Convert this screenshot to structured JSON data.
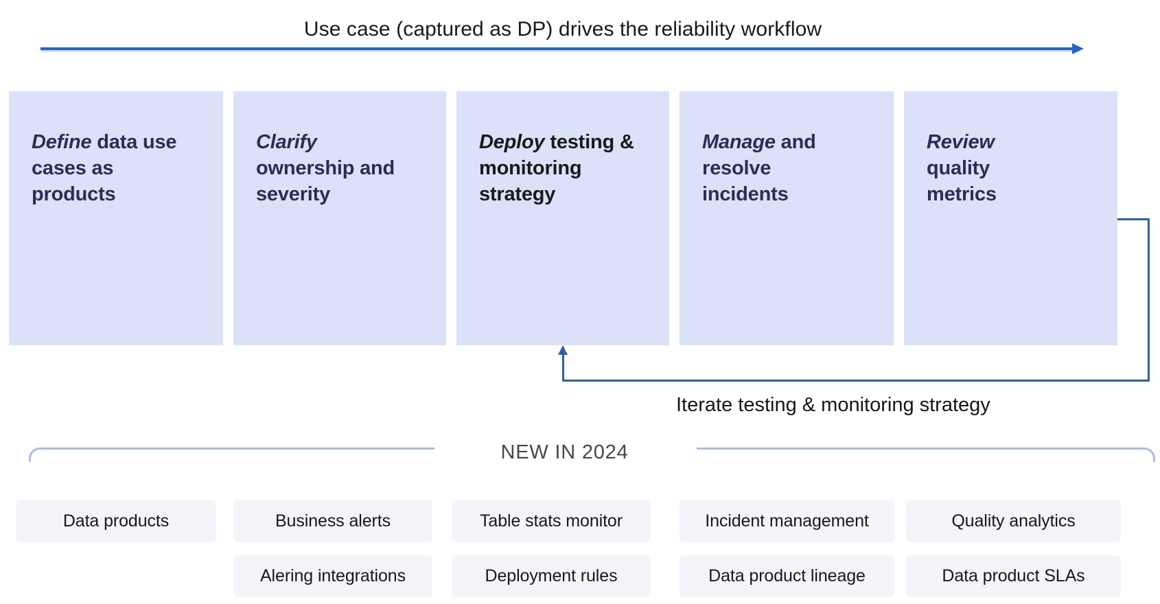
{
  "title": "Use case (captured as DP) drives the reliability workflow",
  "colors": {
    "accent_blue": "#2a63c4",
    "loop_blue": "#2e5f9f",
    "box_bg": "#dae1f9",
    "step_text_navy": "#2b2e52",
    "step_text_dark": "#1a1a1a",
    "bracket_line": "#adb9e6",
    "chip_bg": "#f3f5fa"
  },
  "workflow": {
    "steps": [
      {
        "emphasis": "Define",
        "rest": "data use cases as products",
        "tone": "navy"
      },
      {
        "emphasis": "Clarify",
        "rest": "ownership and severity",
        "tone": "navy"
      },
      {
        "emphasis": "Deploy",
        "rest": "testing & monitoring strategy",
        "tone": "dark"
      },
      {
        "emphasis": "Manage",
        "rest": "and resolve incidents",
        "tone": "navy"
      },
      {
        "emphasis": "Review",
        "rest": "quality metrics",
        "tone": "navy"
      }
    ],
    "iterate_label": "Iterate testing & monitoring strategy"
  },
  "new_in_2024": {
    "heading": "NEW IN 2024",
    "columns": [
      {
        "items": [
          "Data products"
        ]
      },
      {
        "items": [
          "Business alerts",
          "Alering integrations"
        ]
      },
      {
        "items": [
          "Table stats monitor",
          "Deployment rules"
        ]
      },
      {
        "items": [
          "Incident management",
          "Data product lineage"
        ]
      },
      {
        "items": [
          "Quality analytics",
          "Data product SLAs"
        ]
      }
    ]
  }
}
